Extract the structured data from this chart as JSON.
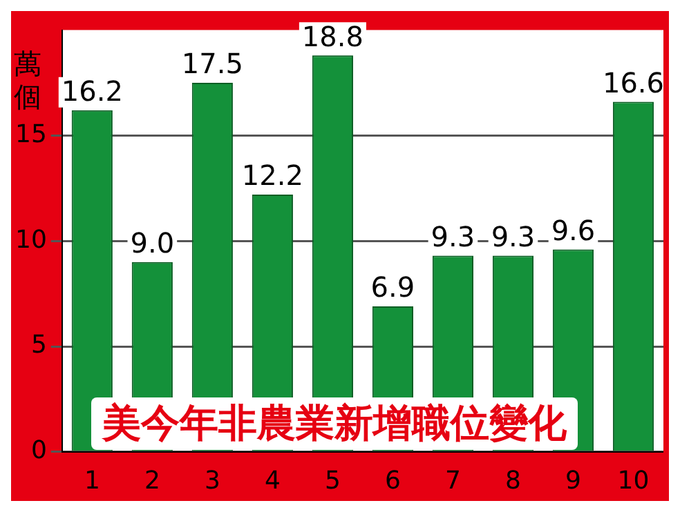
{
  "chart_data": {
    "type": "bar",
    "title": "美今年非農業新增職位變化",
    "ylabel": "萬個",
    "categories": [
      "1",
      "2",
      "3",
      "4",
      "5",
      "6",
      "7",
      "8",
      "9",
      "10"
    ],
    "values": [
      16.2,
      9.0,
      17.5,
      12.2,
      18.8,
      6.9,
      9.3,
      9.3,
      9.6,
      16.6
    ],
    "value_labels": [
      "16.2",
      "9.0",
      "17.5",
      "12.2",
      "18.8",
      "6.9",
      "9.3",
      "9.3",
      "9.6",
      "16.6"
    ],
    "color": "#14913a",
    "ylim": [
      0,
      20
    ],
    "yticks": [
      0,
      5,
      10,
      15
    ],
    "grid": "y",
    "legend": false
  }
}
